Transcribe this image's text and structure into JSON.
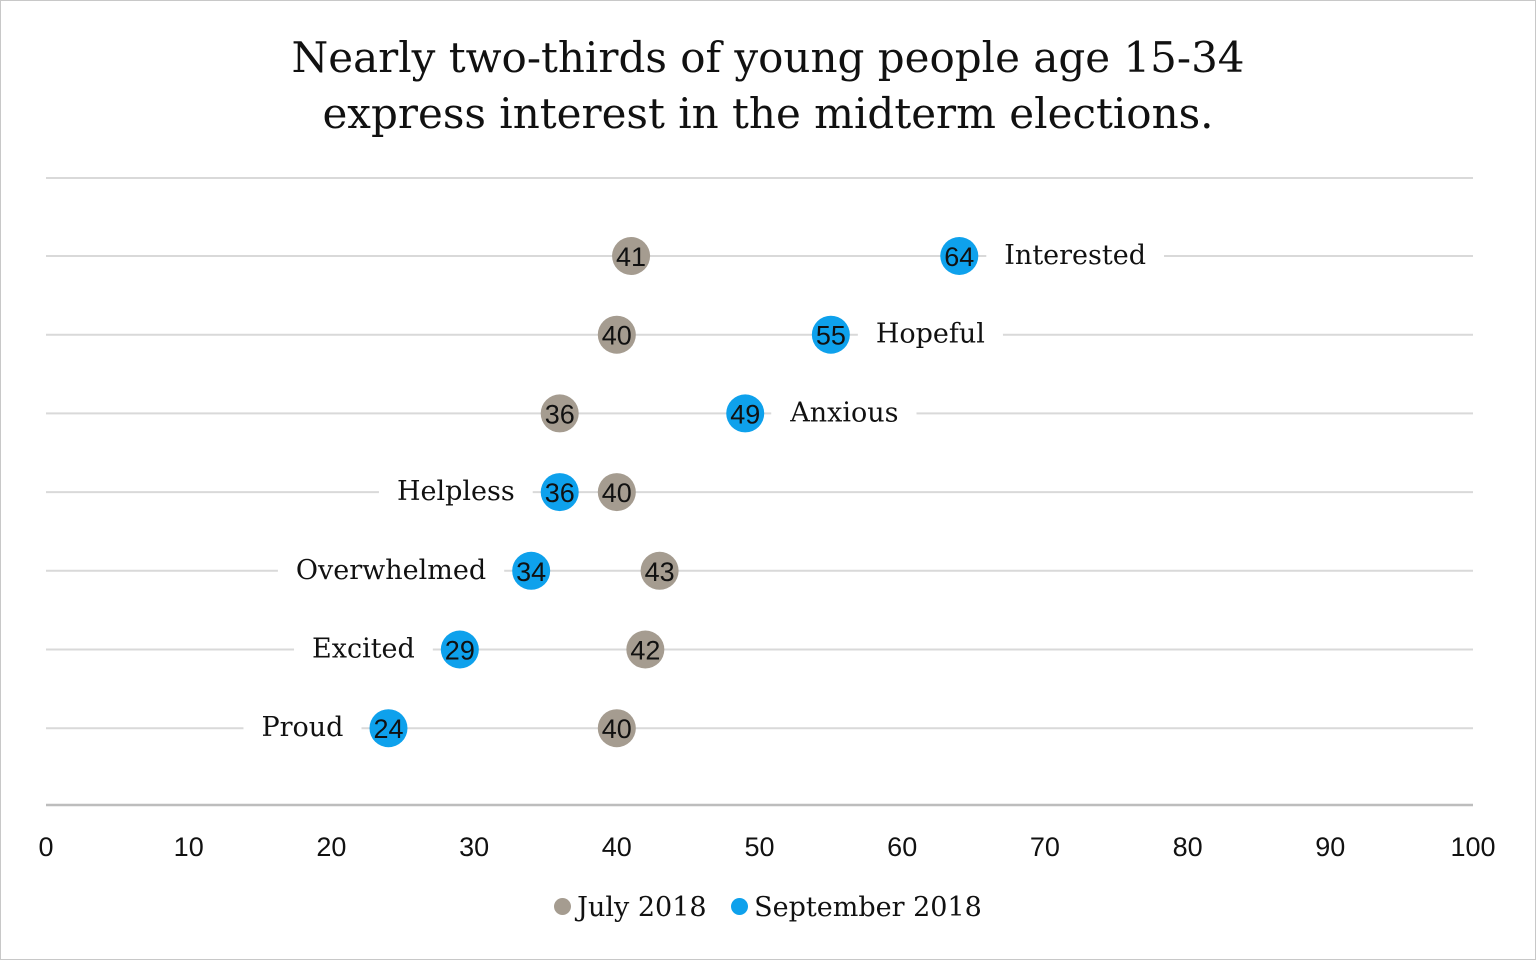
{
  "chart_data": {
    "type": "scatter",
    "title_lines": [
      "Nearly two-thirds of young people age 15-34",
      "express interest in the midterm elections."
    ],
    "xlim": [
      0,
      100
    ],
    "x_ticks": [
      "0",
      "10",
      "20",
      "30",
      "40",
      "50",
      "60",
      "70",
      "80",
      "90",
      "100"
    ],
    "categories": [
      "Interested",
      "Hopeful",
      "Anxious",
      "Helpless",
      "Overwhelmed",
      "Excited",
      "Proud"
    ],
    "series": [
      {
        "name": "July 2018",
        "color": "#a59c90",
        "values": [
          41,
          40,
          36,
          40,
          43,
          42,
          40
        ]
      },
      {
        "name": "September 2018",
        "color": "#0ea1ec",
        "values": [
          64,
          55,
          49,
          36,
          34,
          29,
          24
        ]
      }
    ],
    "legend_position": "bottom",
    "grid": true
  }
}
